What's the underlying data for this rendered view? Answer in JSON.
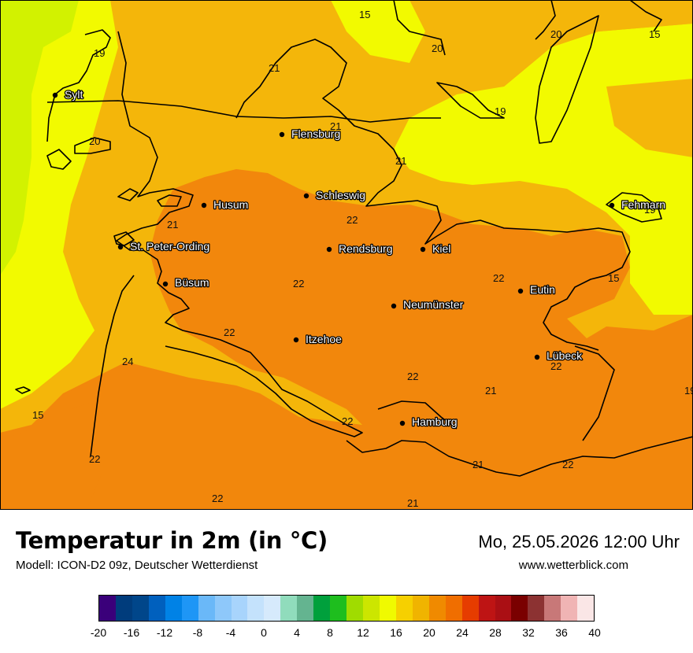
{
  "header": {
    "title": "Temperatur in 2m (in °C)",
    "subtitle": "Modell: ICON-D2 09z, Deutscher Wetterdienst",
    "datetime": "Mo, 25.05.2026 12:00 Uhr",
    "website": "www.wetterblick.com"
  },
  "legend": {
    "ticks": [
      "-20",
      "-16",
      "-12",
      "-8",
      "-4",
      "0",
      "4",
      "8",
      "12",
      "16",
      "20",
      "24",
      "28",
      "32",
      "36",
      "40"
    ],
    "colors": [
      "#3a007a",
      "#003c7c",
      "#00468a",
      "#0060be",
      "#0082e6",
      "#1e96f6",
      "#6ab8f8",
      "#8ec8fa",
      "#a8d4fc",
      "#c4e2fc",
      "#d6eafc",
      "#90dcbc",
      "#64b490",
      "#00a03c",
      "#1ebe1e",
      "#a0dc00",
      "#cce600",
      "#f0fa00",
      "#f6d000",
      "#f0b400",
      "#f08a00",
      "#f06e00",
      "#e63c00",
      "#be1414",
      "#aa0f14",
      "#7a0000",
      "#8c3232",
      "#c87878",
      "#f0b4b4",
      "#fae6e6"
    ]
  },
  "cities": [
    {
      "name": "Sylt"
    },
    {
      "name": "Flensburg"
    },
    {
      "name": "Schleswig"
    },
    {
      "name": "Husum"
    },
    {
      "name": "Fehmarn"
    },
    {
      "name": "St. Peter-Ording"
    },
    {
      "name": "Rendsburg"
    },
    {
      "name": "Kiel"
    },
    {
      "name": "Büsum"
    },
    {
      "name": "Eutin"
    },
    {
      "name": "Neumünster"
    },
    {
      "name": "Itzehoe"
    },
    {
      "name": "Lübeck"
    },
    {
      "name": "Hamburg"
    }
  ],
  "isotherm_labels": [
    "15",
    "20",
    "15",
    "19",
    "20",
    "21",
    "21",
    "19",
    "20",
    "21",
    "22",
    "21",
    "19",
    "22",
    "22",
    "15",
    "22",
    "24",
    "22",
    "21",
    "15",
    "22",
    "22",
    "22",
    "21",
    "22",
    "21",
    "19"
  ],
  "colors": {
    "warm_orange": "#f2870c",
    "light_orange": "#f4b60a",
    "yellow": "#f2fa00",
    "yellow_green": "#d2f200",
    "border": "#000000"
  }
}
